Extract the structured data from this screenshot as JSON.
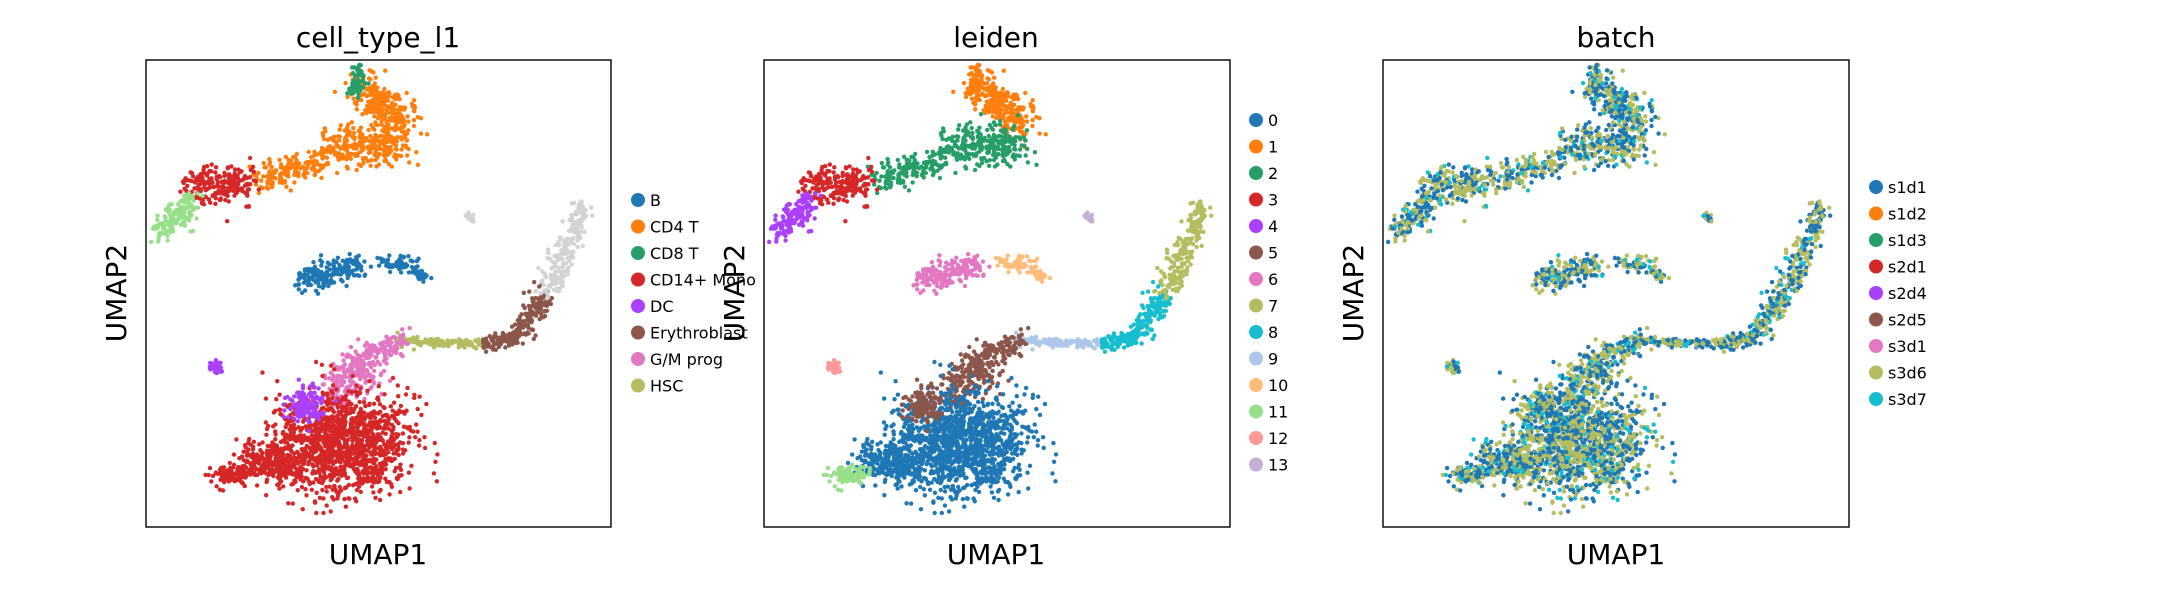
{
  "chart_data": [
    {
      "type": "scatter",
      "title": "cell_type_l1",
      "xlabel": "UMAP1",
      "ylabel": "UMAP2",
      "grid": false,
      "ticks": false,
      "legend_position": "right",
      "series": [
        {
          "name": "B",
          "color": "#1f77b4"
        },
        {
          "name": "CD4 T",
          "color": "#ff7f0e"
        },
        {
          "name": "CD8 T",
          "color": "#279e68"
        },
        {
          "name": "CD14+ Mono",
          "color": "#d62728"
        },
        {
          "name": "DC",
          "color": "#aa40fc"
        },
        {
          "name": "Erythroblast",
          "color": "#8c564b"
        },
        {
          "name": "G/M prog",
          "color": "#e377c2"
        },
        {
          "name": "HSC",
          "color": "#b5bd61"
        }
      ]
    },
    {
      "type": "scatter",
      "title": "leiden",
      "xlabel": "UMAP1",
      "ylabel": "UMAP2",
      "grid": false,
      "ticks": false,
      "legend_position": "right",
      "series": [
        {
          "name": "0",
          "color": "#1f77b4"
        },
        {
          "name": "1",
          "color": "#ff7f0e"
        },
        {
          "name": "2",
          "color": "#279e68"
        },
        {
          "name": "3",
          "color": "#d62728"
        },
        {
          "name": "4",
          "color": "#aa40fc"
        },
        {
          "name": "5",
          "color": "#8c564b"
        },
        {
          "name": "6",
          "color": "#e377c2"
        },
        {
          "name": "7",
          "color": "#b5bd61"
        },
        {
          "name": "8",
          "color": "#17becf"
        },
        {
          "name": "9",
          "color": "#aec7e8"
        },
        {
          "name": "10",
          "color": "#ffbb78"
        },
        {
          "name": "11",
          "color": "#98df8a"
        },
        {
          "name": "12",
          "color": "#ff9896"
        },
        {
          "name": "13",
          "color": "#c5b0d5"
        }
      ]
    },
    {
      "type": "scatter",
      "title": "batch",
      "xlabel": "UMAP1",
      "ylabel": "UMAP2",
      "grid": false,
      "ticks": false,
      "legend_position": "right",
      "series": [
        {
          "name": "s1d1",
          "color": "#1f77b4"
        },
        {
          "name": "s1d2",
          "color": "#ff7f0e"
        },
        {
          "name": "s1d3",
          "color": "#279e68"
        },
        {
          "name": "s2d1",
          "color": "#d62728"
        },
        {
          "name": "s2d4",
          "color": "#aa40fc"
        },
        {
          "name": "s2d5",
          "color": "#8c564b"
        },
        {
          "name": "s3d1",
          "color": "#e377c2"
        },
        {
          "name": "s3d6",
          "color": "#b5bd61"
        },
        {
          "name": "s3d7",
          "color": "#17becf"
        }
      ]
    }
  ]
}
